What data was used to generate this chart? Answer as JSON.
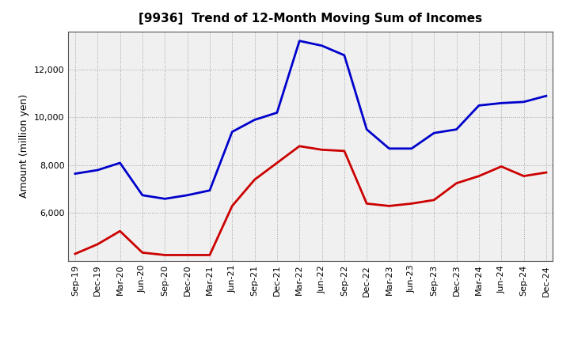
{
  "title": "[9936]  Trend of 12-Month Moving Sum of Incomes",
  "ylabel": "Amount (million yen)",
  "background_color": "#ffffff",
  "plot_bg_color": "#f0f0f0",
  "grid_color": "#999999",
  "x_labels": [
    "Sep-19",
    "Dec-19",
    "Mar-20",
    "Jun-20",
    "Sep-20",
    "Dec-20",
    "Mar-21",
    "Jun-21",
    "Sep-21",
    "Dec-21",
    "Mar-22",
    "Jun-22",
    "Sep-22",
    "Dec-22",
    "Mar-23",
    "Jun-23",
    "Sep-23",
    "Dec-23",
    "Mar-24",
    "Jun-24",
    "Sep-24",
    "Dec-24"
  ],
  "ordinary_income": [
    7650,
    7800,
    8100,
    6750,
    6600,
    6750,
    6950,
    9400,
    9900,
    10200,
    13200,
    13000,
    12600,
    9500,
    8700,
    8700,
    9350,
    9500,
    10500,
    10600,
    10650,
    10900
  ],
  "net_income": [
    4300,
    4700,
    5250,
    4350,
    4250,
    4250,
    4250,
    6300,
    7400,
    8100,
    8800,
    8650,
    8600,
    6400,
    6300,
    6400,
    6550,
    7250,
    7550,
    7950,
    7550,
    7700
  ],
  "ordinary_color": "#0000cc",
  "net_color": "#cc0000",
  "ylim_min": 4000,
  "ylim_max": 13600,
  "yticks": [
    6000,
    8000,
    10000,
    12000
  ],
  "line_width": 2.0,
  "title_fontsize": 11,
  "label_fontsize": 8,
  "legend_fontsize": 9
}
